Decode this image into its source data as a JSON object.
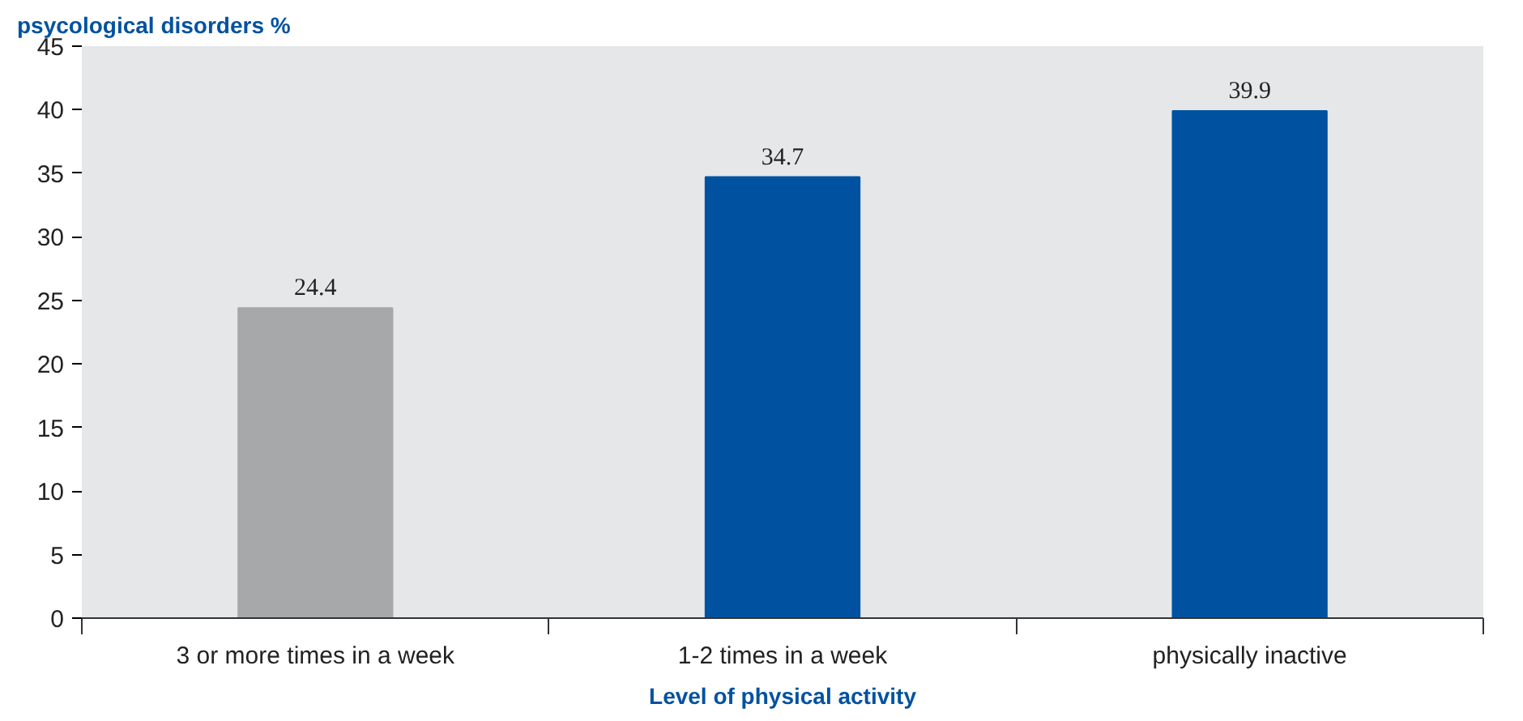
{
  "chart_data": {
    "type": "bar",
    "ylabel": "psycological disorders %",
    "xlabel": "Level of physical activity",
    "categories": [
      "3 or more times in a week",
      "1-2 times in a week",
      "physically inactive"
    ],
    "values": [
      24.4,
      34.7,
      39.9
    ],
    "colors": [
      "#a7a8aa",
      "#0052a0",
      "#0052a0"
    ],
    "ylim": [
      0,
      45
    ],
    "yticks": [
      0,
      5,
      10,
      15,
      20,
      25,
      30,
      35,
      40,
      45
    ],
    "data_labels": true
  }
}
